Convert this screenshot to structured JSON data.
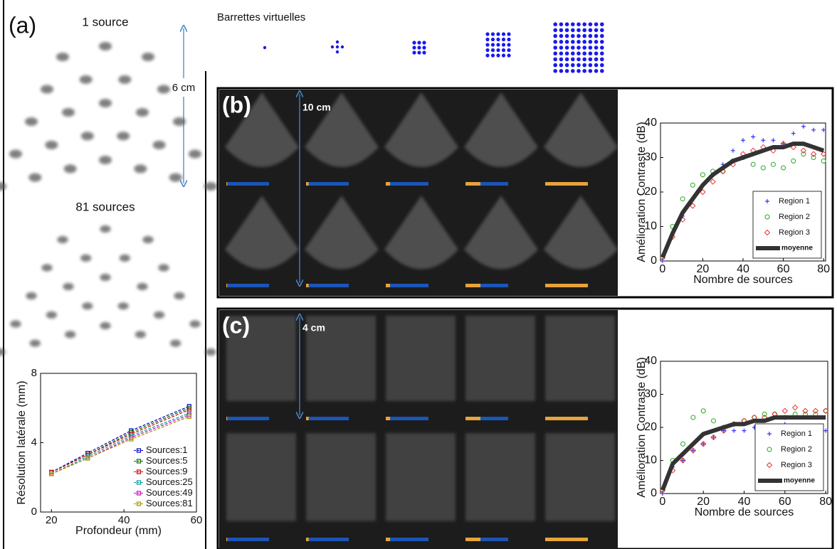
{
  "labels": {
    "panel_a": "(a)",
    "psf_top": "1 source",
    "scale_a": "6 cm",
    "psf_bottom": "81 sources",
    "arrays": "Barrettes virtuelles",
    "panel_b": "(b)",
    "scale_b": "10 cm",
    "panel_c": "(c)",
    "scale_c": "4 cm"
  },
  "chart_data": [
    {
      "type": "line",
      "xlabel": "Profondeur (mm)",
      "ylabel": "Résolution latérale (mm)",
      "x": [
        20,
        30,
        42,
        58
      ],
      "xlim": [
        17,
        60
      ],
      "ylim": [
        0,
        8
      ],
      "xticks": [
        20,
        40,
        60
      ],
      "yticks": [
        0,
        4,
        8
      ],
      "legend": "lower right",
      "series": [
        {
          "name": "Sources:1",
          "color": "#0000cc",
          "marker": "square",
          "values": [
            2.3,
            3.4,
            4.7,
            6.1
          ]
        },
        {
          "name": "Sources:5",
          "color": "#006600",
          "marker": "square",
          "values": [
            2.3,
            3.3,
            4.6,
            6.0
          ]
        },
        {
          "name": "Sources:9",
          "color": "#cc0000",
          "marker": "square",
          "values": [
            2.3,
            3.3,
            4.5,
            5.9
          ]
        },
        {
          "name": "Sources:25",
          "color": "#009999",
          "marker": "square",
          "values": [
            2.2,
            3.2,
            4.4,
            5.7
          ]
        },
        {
          "name": "Sources:49",
          "color": "#cc00cc",
          "marker": "square",
          "values": [
            2.2,
            3.1,
            4.3,
            5.6
          ]
        },
        {
          "name": "Sources:81",
          "color": "#999900",
          "marker": "square",
          "values": [
            2.2,
            3.1,
            4.2,
            5.5
          ]
        }
      ]
    },
    {
      "type": "scatter",
      "xlabel": "Nombre de sources",
      "ylabel": "Amélioration Contraste (dB)",
      "x": [
        0,
        5,
        10,
        15,
        20,
        25,
        30,
        35,
        40,
        45,
        50,
        55,
        60,
        65,
        70,
        75,
        80
      ],
      "xlim": [
        -1,
        81
      ],
      "ylim": [
        0,
        40
      ],
      "xticks": [
        0,
        20,
        40,
        60,
        80
      ],
      "yticks": [
        0,
        10,
        20,
        30,
        40
      ],
      "legend": "lower right",
      "series": [
        {
          "name": "Region 1",
          "color": "#3333ff",
          "marker": "plus",
          "values": [
            0,
            8,
            13,
            18,
            22,
            25,
            28,
            32,
            35,
            36,
            35,
            35,
            34,
            37,
            39,
            38,
            38
          ]
        },
        {
          "name": "Region 2",
          "color": "#22aa22",
          "marker": "circle",
          "values": [
            1,
            10,
            18,
            22,
            25,
            26,
            26,
            29,
            30,
            28,
            27,
            28,
            27,
            29,
            31,
            30,
            29
          ]
        },
        {
          "name": "Region 3",
          "color": "#ee3333",
          "marker": "diamond",
          "values": [
            1,
            7,
            12,
            16,
            20,
            23,
            26,
            28,
            31,
            32,
            33,
            32,
            34,
            33,
            32,
            31,
            31
          ]
        },
        {
          "name": "moyenne",
          "color": "#333333",
          "marker": "line",
          "values": [
            1,
            8,
            14,
            18,
            22,
            25,
            27,
            29,
            30,
            31,
            32,
            33,
            33,
            34,
            34,
            33,
            32
          ]
        }
      ]
    },
    {
      "type": "scatter",
      "xlabel": "Nombre de sources",
      "ylabel": "Amélioration Contraste (dB)",
      "x": [
        0,
        5,
        10,
        15,
        20,
        25,
        30,
        35,
        40,
        45,
        50,
        55,
        60,
        65,
        70,
        75,
        80
      ],
      "xlim": [
        -1,
        81
      ],
      "ylim": [
        0,
        40
      ],
      "xticks": [
        0,
        20,
        40,
        60,
        80
      ],
      "yticks": [
        0,
        10,
        20,
        30,
        40
      ],
      "legend": "lower right",
      "series": [
        {
          "name": "Region 1",
          "color": "#3333ff",
          "marker": "plus",
          "values": [
            0,
            8,
            10,
            13,
            15,
            17,
            19,
            19,
            19,
            20,
            20,
            20,
            21,
            20,
            20,
            20,
            19
          ]
        },
        {
          "name": "Region 2",
          "color": "#22aa22",
          "marker": "circle",
          "values": [
            1,
            10,
            15,
            23,
            25,
            22,
            20,
            21,
            22,
            23,
            24,
            24,
            23,
            24,
            24,
            24,
            25
          ]
        },
        {
          "name": "Region 3",
          "color": "#ee3333",
          "marker": "diamond",
          "values": [
            1,
            7,
            10,
            13,
            15,
            17,
            19,
            21,
            22,
            23,
            23,
            24,
            25,
            26,
            25,
            25,
            25
          ]
        },
        {
          "name": "moyenne",
          "color": "#333333",
          "marker": "line",
          "values": [
            1,
            9,
            12,
            15,
            18,
            19,
            20,
            21,
            21,
            22,
            22,
            23,
            23,
            23,
            23,
            23,
            23
          ]
        }
      ]
    }
  ]
}
